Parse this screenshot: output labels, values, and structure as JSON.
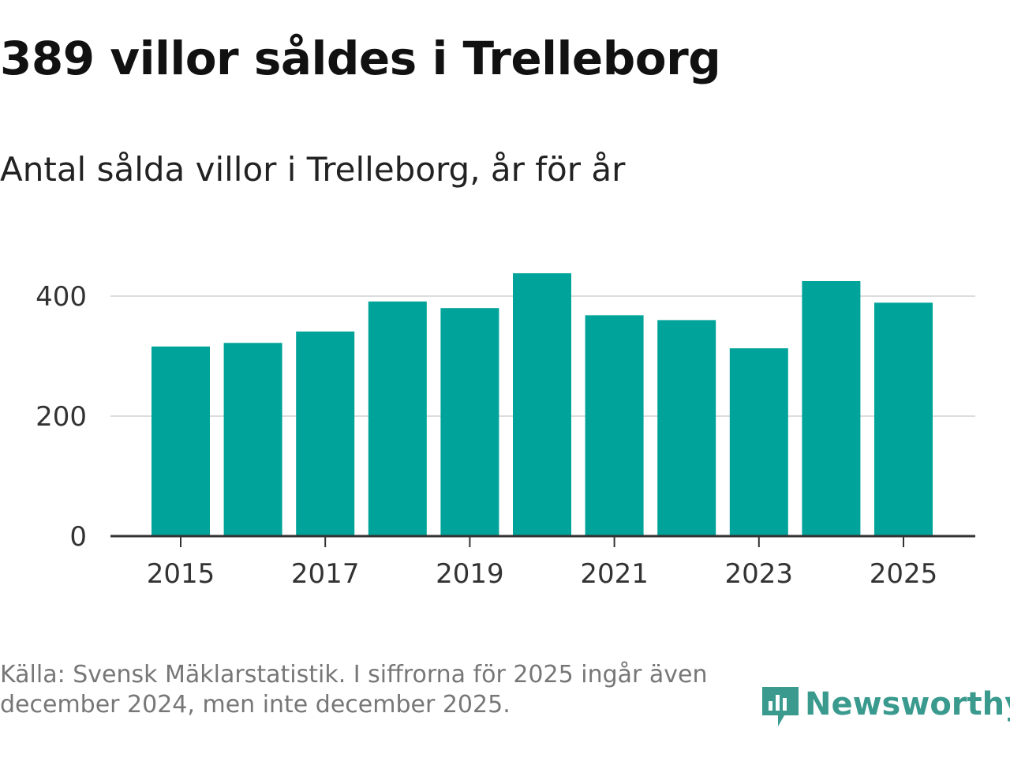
{
  "title": "389 villor såldes i Trelleborg",
  "subtitle": "Antal sålda villor i Trelleborg, år för år",
  "source": "Källa: Svensk Mäklarstatistik. I siffrorna för 2025 ingår även december 2024, men inte december 2025.",
  "logo_text": "Newsworthy",
  "colors": {
    "bar": "#00a39a",
    "grid": "#dddddd",
    "axis": "#333333",
    "logo": "#3a9a8e"
  },
  "chart_data": {
    "type": "bar",
    "title": "389 villor såldes i Trelleborg",
    "subtitle": "Antal sålda villor i Trelleborg, år för år",
    "xlabel": "",
    "ylabel": "",
    "categories": [
      "2015",
      "2016",
      "2017",
      "2018",
      "2019",
      "2020",
      "2021",
      "2022",
      "2023",
      "2024",
      "2025"
    ],
    "values": [
      316,
      322,
      341,
      391,
      380,
      438,
      368,
      360,
      313,
      425,
      389
    ],
    "ylim": [
      0,
      450
    ],
    "yticks": [
      0,
      200,
      400
    ],
    "xtick_labels": [
      "2015",
      "2017",
      "2019",
      "2021",
      "2023",
      "2025"
    ],
    "grid": true
  }
}
